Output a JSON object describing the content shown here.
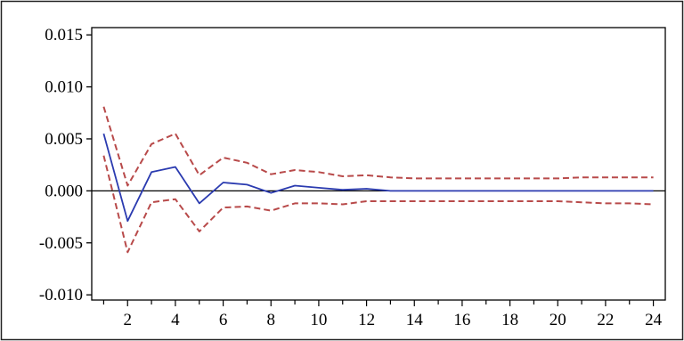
{
  "chart_data": {
    "type": "line",
    "title": "",
    "xlabel": "",
    "ylabel": "",
    "xlim": [
      0.5,
      24.5
    ],
    "ylim": [
      -0.0105,
      0.0157
    ],
    "x_ticks": [
      2,
      4,
      6,
      8,
      10,
      12,
      14,
      16,
      18,
      20,
      22,
      24
    ],
    "x_tick_labels": [
      "2",
      "4",
      "6",
      "8",
      "10",
      "12",
      "14",
      "16",
      "18",
      "20",
      "22",
      "24"
    ],
    "y_ticks": [
      -0.01,
      -0.005,
      0.0,
      0.005,
      0.01,
      0.015
    ],
    "y_tick_labels": [
      "-0.010",
      "-0.005",
      "0.000",
      "0.005",
      "0.010",
      "0.015"
    ],
    "grid": false,
    "legend": "none",
    "zero_line": true,
    "x": [
      1,
      2,
      3,
      4,
      5,
      6,
      7,
      8,
      9,
      10,
      11,
      12,
      13,
      14,
      15,
      16,
      17,
      18,
      19,
      20,
      21,
      22,
      23,
      24
    ],
    "series": [
      {
        "role": "response",
        "color": "#2b3bb0",
        "dash": "solid",
        "values": [
          0.0055,
          -0.0029,
          0.0018,
          0.0023,
          -0.0012,
          0.0008,
          0.0006,
          -0.0002,
          0.0005,
          0.0003,
          0.0001,
          0.0002,
          0.0,
          0.0,
          0.0,
          0.0,
          0.0,
          0.0,
          0.0,
          0.0,
          0.0,
          0.0,
          0.0,
          0.0
        ]
      },
      {
        "role": "upper-band",
        "color": "#b84a4a",
        "dash": "dashed",
        "values": [
          0.0081,
          0.0005,
          0.0045,
          0.0055,
          0.0015,
          0.0032,
          0.0027,
          0.0016,
          0.002,
          0.0018,
          0.0014,
          0.0015,
          0.0013,
          0.0012,
          0.0012,
          0.0012,
          0.0012,
          0.0012,
          0.0012,
          0.0012,
          0.0013,
          0.0013,
          0.0013,
          0.0013
        ]
      },
      {
        "role": "lower-band",
        "color": "#b84a4a",
        "dash": "dashed",
        "values": [
          0.0034,
          -0.0059,
          -0.0011,
          -0.0008,
          -0.0039,
          -0.0016,
          -0.0015,
          -0.0019,
          -0.0012,
          -0.0012,
          -0.0013,
          -0.001,
          -0.001,
          -0.001,
          -0.001,
          -0.001,
          -0.001,
          -0.001,
          -0.001,
          -0.001,
          -0.0011,
          -0.0012,
          -0.0012,
          -0.0013
        ]
      }
    ]
  }
}
